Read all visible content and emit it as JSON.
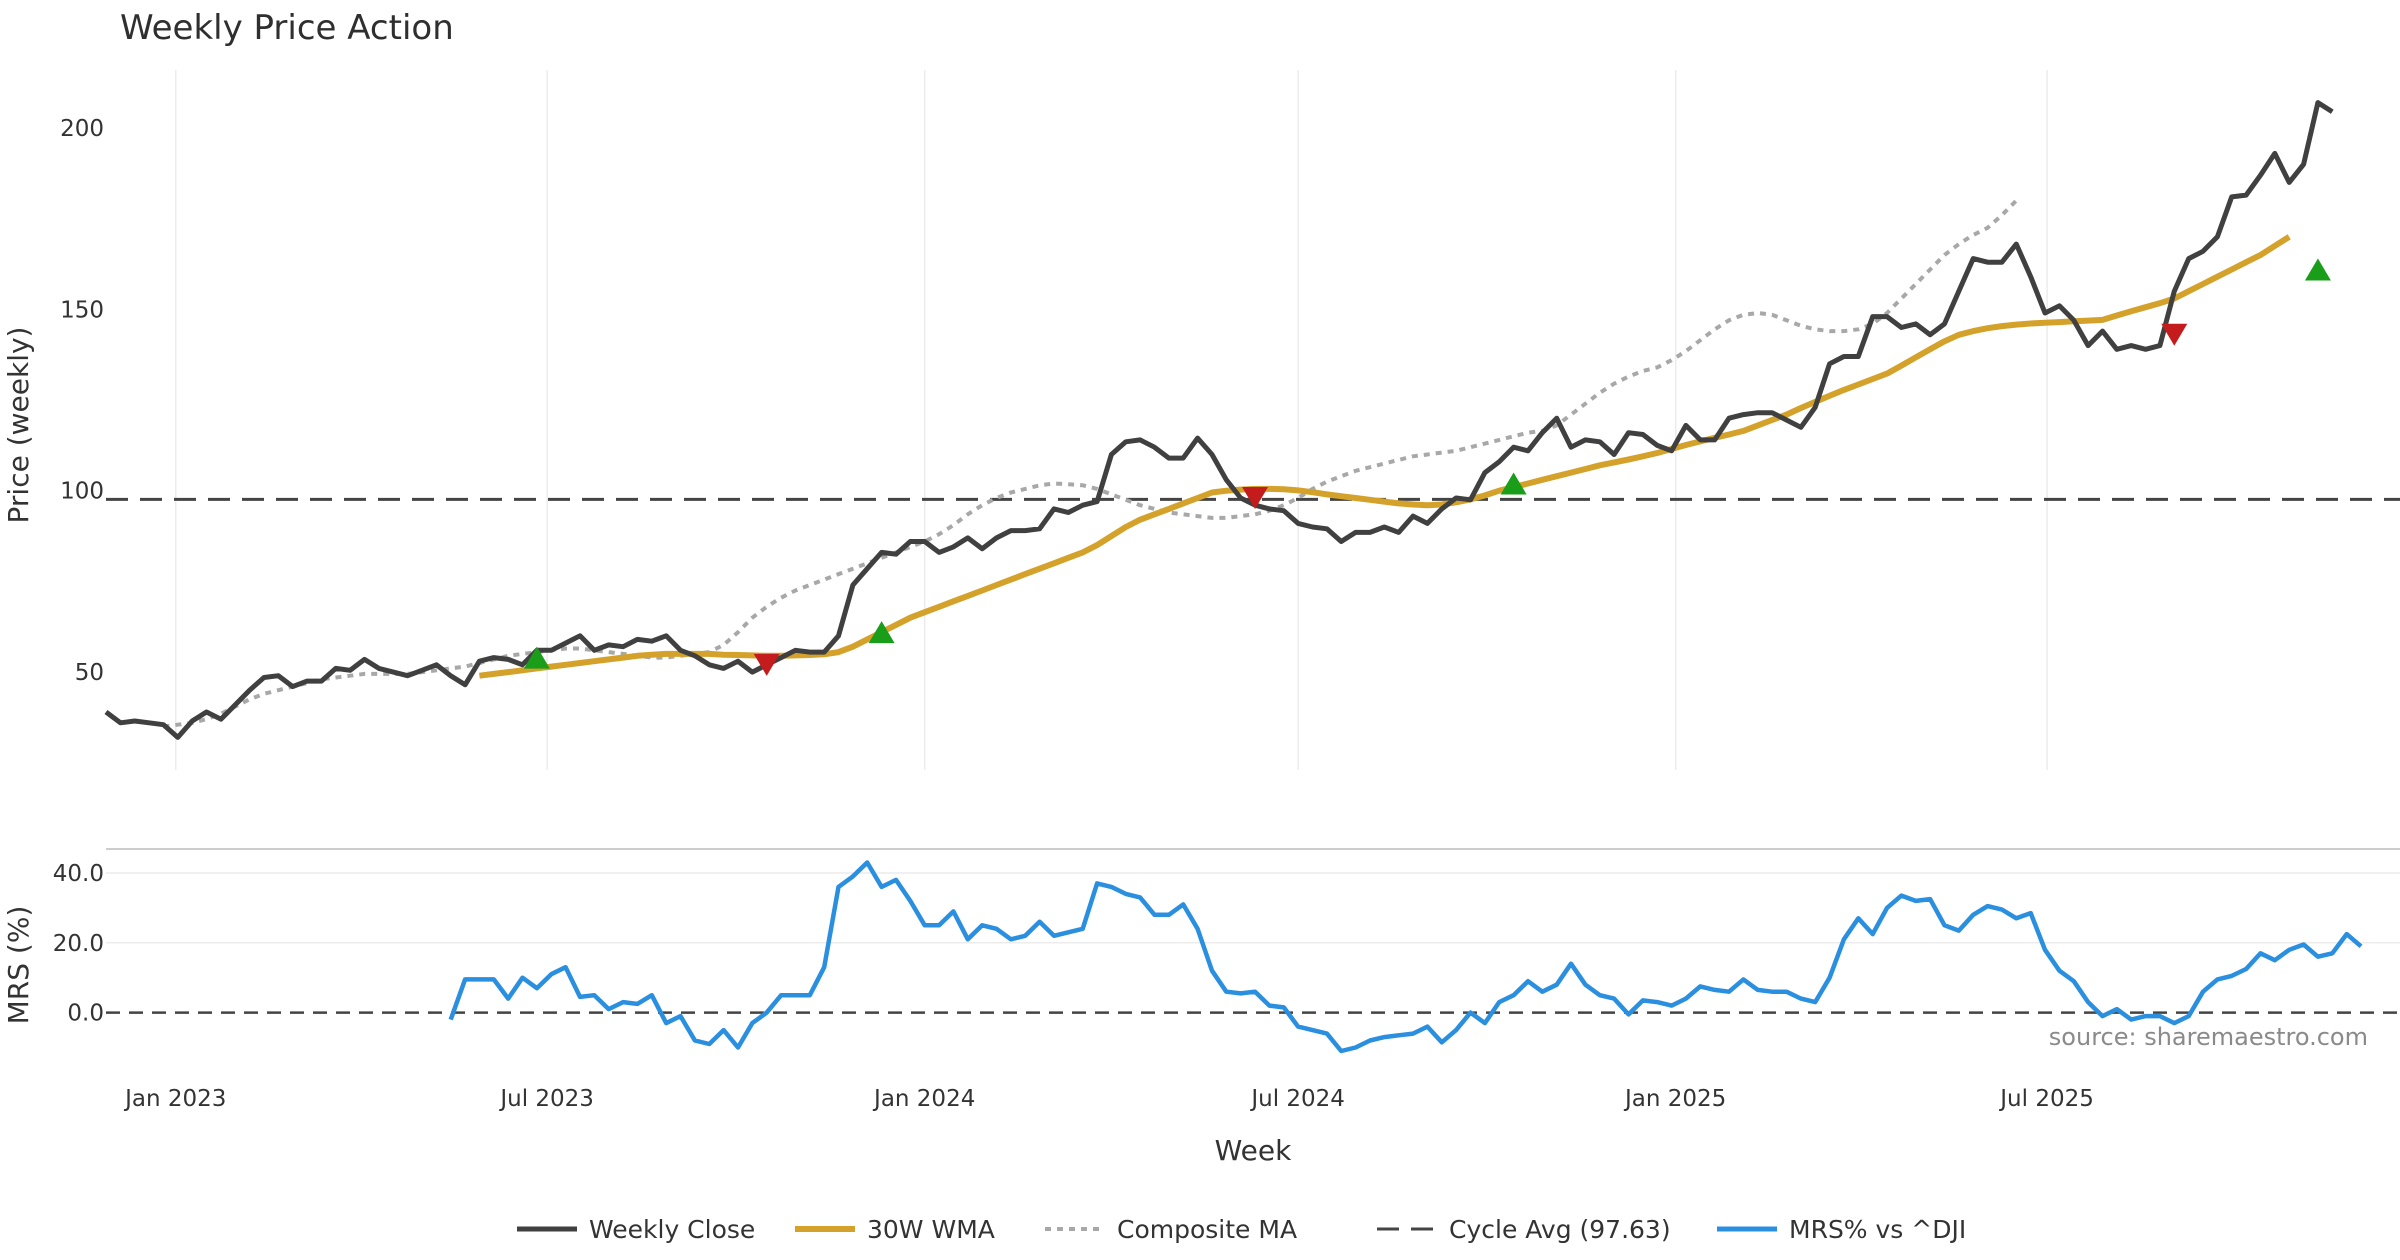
{
  "chart_data": {
    "type": "line",
    "title": "Weekly Price Action",
    "xlabel": "Week",
    "source": "source: sharemaestro.com",
    "x_ticks": [
      "Jan 2023",
      "Jul 2023",
      "Jan 2024",
      "Jul 2024",
      "Jan 2025",
      "Jul 2025"
    ],
    "price_panel": {
      "ylabel": "Price (weekly)",
      "ylim": [
        23,
        216
      ],
      "y_ticks": [
        "50",
        "100",
        "150",
        "200"
      ],
      "cycle_avg": 97.63
    },
    "mrs_panel": {
      "ylabel": "MRS (%)",
      "ylim": [
        -13,
        46
      ],
      "y_ticks": [
        "0.0",
        "20.0",
        "40.0"
      ]
    },
    "x_range": [
      "2022-11-28",
      "2025-12-20"
    ],
    "series": [
      {
        "name": "Weekly Close",
        "color": "#404040",
        "start": "2022-11-28",
        "values": [
          39,
          36,
          36.5,
          36,
          35.5,
          32,
          36.5,
          39,
          37,
          41,
          45,
          48.5,
          49,
          46,
          47.5,
          47.5,
          51,
          50.5,
          53.5,
          51,
          50,
          49,
          50.5,
          52,
          49,
          46.5,
          53,
          54,
          53.5,
          52,
          56,
          56,
          58,
          60,
          56,
          57.5,
          57,
          59,
          58.5,
          60,
          56,
          54.5,
          52,
          51,
          53,
          50,
          52,
          54,
          56,
          55.5,
          55.5,
          60,
          74,
          78.5,
          83,
          82.5,
          86,
          86,
          83,
          84.5,
          87,
          84,
          87,
          89,
          89,
          89.5,
          95,
          94,
          96,
          97,
          110,
          113.5,
          114,
          112,
          109,
          109,
          114.5,
          110,
          103,
          98,
          96,
          95,
          94.5,
          91,
          90,
          89.5,
          86,
          88.5,
          88.5,
          90,
          88.5,
          93,
          91,
          95,
          98,
          97.5,
          105,
          108,
          112,
          111,
          116,
          120,
          112,
          114,
          113.5,
          110,
          116,
          115.5,
          112.5,
          111,
          118,
          114,
          114,
          120,
          121,
          121.5,
          121.5,
          119.5,
          117.5,
          123,
          135,
          137,
          137,
          148,
          148,
          145,
          146,
          143,
          146,
          155,
          164,
          163,
          163,
          168,
          159,
          149,
          151,
          147,
          140,
          144,
          139,
          140,
          139,
          140,
          155,
          164,
          166,
          170,
          181,
          181.5,
          187,
          193,
          185,
          190,
          207,
          204.5
        ]
      },
      {
        "name": "30W WMA",
        "color": "#d4a22a",
        "start": "2023-05-29",
        "values": [
          49,
          49.5,
          50,
          50.5,
          51,
          51.5,
          52,
          52.5,
          53,
          53.5,
          54,
          54.5,
          54.8,
          55,
          55,
          55,
          55,
          54.8,
          54.7,
          54.6,
          54.5,
          54.5,
          54.6,
          54.7,
          54.9,
          55.5,
          57,
          59,
          61,
          63,
          65,
          66.5,
          68,
          69.5,
          71,
          72.5,
          74,
          75.5,
          77,
          78.5,
          80,
          81.5,
          83,
          85,
          87.5,
          90,
          92,
          93.5,
          95,
          96.5,
          98,
          99.5,
          100,
          100.3,
          100.5,
          100.5,
          100.4,
          100.1,
          99.6,
          99,
          98.5,
          98,
          97.5,
          97,
          96.5,
          96.2,
          96,
          96.2,
          96.8,
          97.6,
          98.7,
          100,
          101,
          102,
          103,
          104,
          105,
          106,
          107,
          107.8,
          108.6,
          109.5,
          110.4,
          111.5,
          112.6,
          113.6,
          114.6,
          115.5,
          116.5,
          118,
          119.5,
          121,
          122.8,
          124.5,
          126.2,
          127.8,
          129.3,
          130.8,
          132.3,
          134.5,
          136.8,
          139,
          141.2,
          143,
          144,
          144.8,
          145.4,
          145.8,
          146.1,
          146.3,
          146.5,
          146.7,
          146.9,
          147.1,
          148.3,
          149.5,
          150.6,
          151.7,
          153,
          155,
          157,
          159,
          161,
          163,
          165,
          167.5,
          170
        ]
      },
      {
        "name": "Composite MA",
        "color": "#a8a8a8",
        "start": "2022-12-26",
        "values": [
          35,
          35.5,
          36,
          37,
          38.5,
          40.5,
          42.5,
          44,
          45,
          46,
          47,
          48,
          48.5,
          49,
          49.5,
          49.5,
          49.5,
          49.5,
          50,
          50.5,
          51,
          51.5,
          52.5,
          53.5,
          54.5,
          55,
          55.5,
          56,
          56.5,
          56.5,
          56,
          55.5,
          55,
          54.5,
          54,
          54,
          54.5,
          55,
          55.5,
          57.5,
          61,
          65,
          68,
          70.5,
          72.5,
          74,
          75.5,
          77,
          78.5,
          80,
          81.5,
          83,
          84.5,
          86,
          88,
          90.5,
          93.5,
          96,
          98,
          99.5,
          100.5,
          101.5,
          102,
          101.8,
          101.5,
          100.5,
          99,
          97.5,
          96,
          95,
          94,
          93.5,
          93,
          92.5,
          92.5,
          93,
          93.5,
          94.5,
          96,
          98,
          100.5,
          102.5,
          104,
          105.5,
          106.5,
          107.5,
          108.5,
          109.5,
          110,
          110.5,
          111,
          112,
          113,
          114,
          115,
          116,
          116.5,
          118,
          121,
          124,
          127,
          129.5,
          131.5,
          133,
          134,
          136,
          138.5,
          141.5,
          144.5,
          147,
          148.5,
          149,
          148.5,
          147,
          145.5,
          144.5,
          144,
          144,
          144.5,
          146,
          149,
          153,
          157,
          161,
          165,
          168,
          170.5,
          172.5,
          176,
          180
        ]
      },
      {
        "name": "Cycle Avg (97.63)",
        "color": "#444444",
        "start": "",
        "values": []
      },
      {
        "name": "MRS% vs ^DJI",
        "color": "#2b8fe0",
        "start": "2023-05-15",
        "values": [
          -2,
          9.5,
          9.5,
          9.5,
          4,
          10,
          7,
          11,
          13,
          4.5,
          5,
          1,
          3,
          2.5,
          5,
          -3,
          -1,
          -8,
          -9,
          -5,
          -10,
          -3,
          0,
          5,
          5,
          5,
          13,
          36,
          39,
          43,
          36,
          38,
          32,
          25,
          25,
          29,
          21,
          25,
          24,
          21,
          22,
          26,
          22,
          23,
          24,
          37,
          36,
          34,
          33,
          28,
          28,
          31,
          24,
          12,
          6,
          5.5,
          6,
          2,
          1.5,
          -4,
          -5,
          -6,
          -11,
          -10,
          -8,
          -7,
          -6.5,
          -6,
          -4,
          -8.5,
          -5,
          0,
          -3,
          3,
          5,
          9,
          6,
          8,
          14,
          8,
          5,
          4,
          -0.5,
          3.5,
          3,
          2,
          4,
          7.5,
          6.5,
          6,
          9.5,
          6.5,
          6,
          6,
          4,
          3,
          10,
          21,
          27,
          22.5,
          30,
          33.5,
          32,
          32.5,
          25,
          23.5,
          28,
          30.5,
          29.5,
          27,
          28.5,
          18,
          12,
          9,
          3,
          -1,
          1,
          -2,
          -1,
          -1,
          -3,
          -1,
          6,
          9.5,
          10.5,
          12.5,
          17,
          15,
          18,
          19.5,
          16,
          17,
          22.5,
          19
        ]
      }
    ],
    "signals": [
      {
        "type": "buy",
        "color": "#1a9e1a",
        "date": "2023-06-26",
        "value": 54
      },
      {
        "type": "sell",
        "color": "#c41c1c",
        "date": "2023-10-16",
        "value": 52
      },
      {
        "type": "buy",
        "color": "#1a9e1a",
        "date": "2023-12-11",
        "value": 61
      },
      {
        "type": "sell",
        "color": "#c41c1c",
        "date": "2024-06-10",
        "value": 98
      },
      {
        "type": "buy",
        "color": "#1a9e1a",
        "date": "2024-10-14",
        "value": 102
      },
      {
        "type": "sell",
        "color": "#c41c1c",
        "date": "2025-09-01",
        "value": 143
      },
      {
        "type": "buy",
        "color": "#1a9e1a",
        "date": "2025-11-10",
        "value": 161
      }
    ]
  }
}
